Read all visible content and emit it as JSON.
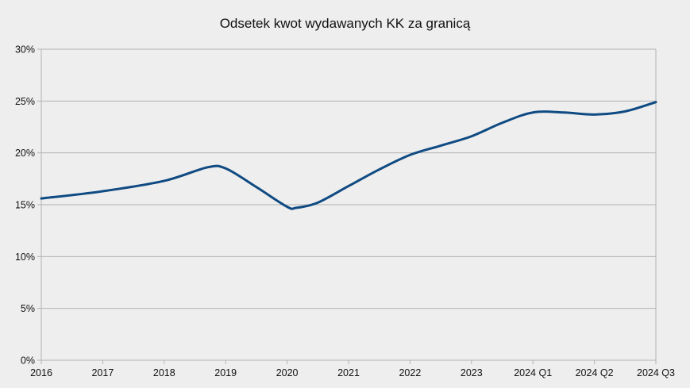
{
  "chart_data": {
    "type": "line",
    "title": "Odsetek kwot wydawanych KK za granicą",
    "xlabel": "",
    "ylabel": "",
    "categories": [
      "2016",
      "2017",
      "2018",
      "2019",
      "2020",
      "2021",
      "2022",
      "2023",
      "2024 Q1",
      "2024 Q2",
      "2024 Q3"
    ],
    "series": [
      {
        "color": "#0f4a82",
        "x": [
          0,
          1,
          2,
          2.7,
          3,
          3.5,
          4,
          4.15,
          4.5,
          5,
          5.5,
          6,
          6.5,
          7,
          7.5,
          8,
          8.5,
          9,
          9.5,
          10
        ],
        "values": [
          15.6,
          16.3,
          17.3,
          18.6,
          18.5,
          16.7,
          14.8,
          14.7,
          15.2,
          16.8,
          18.4,
          19.8,
          20.7,
          21.6,
          22.9,
          23.9,
          23.9,
          23.7,
          24.0,
          24.9
        ]
      }
    ],
    "yticks": [
      0,
      5,
      10,
      15,
      20,
      25,
      30
    ],
    "yticklabels": [
      "0%",
      "5%",
      "10%",
      "15%",
      "20%",
      "25%",
      "30%"
    ],
    "ylim": [
      0,
      30
    ],
    "grid": "horizontal",
    "legend": "none"
  }
}
